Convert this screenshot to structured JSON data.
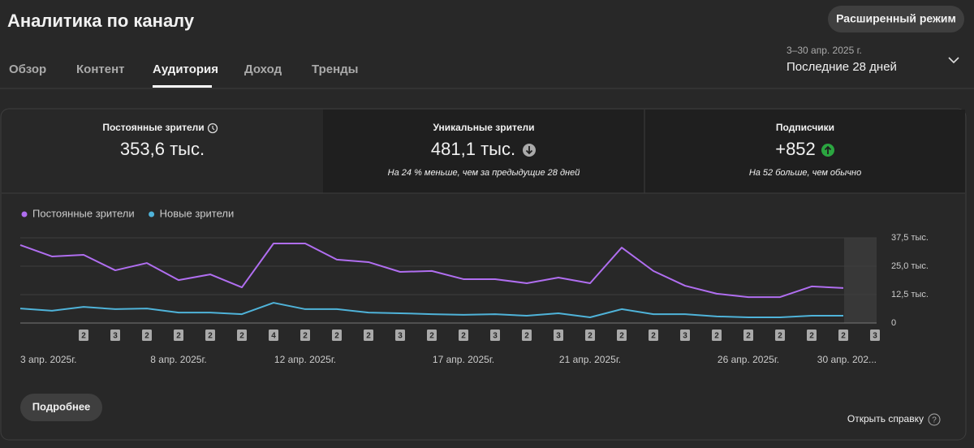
{
  "header": {
    "title": "Аналитика по каналу",
    "button": "Расширенный режим"
  },
  "tabs": [
    "Обзор",
    "Контент",
    "Аудитория",
    "Доход",
    "Тренды"
  ],
  "date_range": {
    "period": "3–30 апр. 2025 г.",
    "label": "Последние 28 дней"
  },
  "cards": [
    {
      "label": "Постоянные зрители",
      "value": "353,6 тыс."
    },
    {
      "label": "Уникальные зрители",
      "value": "481,1 тыс.",
      "note": "На 24 % меньше, чем за предыдущие 28 дней"
    },
    {
      "label": "Подписчики",
      "value": "+852",
      "note": "На 52 больше, чем обычно"
    }
  ],
  "chart_data": {
    "type": "line",
    "categories": [
      "3 апр. 2025г.",
      null,
      null,
      null,
      null,
      "8 апр. 2025г.",
      null,
      null,
      null,
      "12 апр. 2025г.",
      null,
      null,
      null,
      null,
      "17 апр. 2025г.",
      null,
      null,
      null,
      "21 апр. 2025г.",
      null,
      null,
      null,
      null,
      "26 апр. 2025г.",
      null,
      null,
      null,
      "30 апр. 202..."
    ],
    "series": [
      {
        "name": "Постоянные зрители",
        "color": "#b06ef0",
        "values": [
          34.3,
          29.3,
          30.0,
          23.2,
          26.4,
          18.9,
          21.4,
          15.7,
          35.0,
          35.0,
          27.9,
          26.8,
          22.5,
          22.9,
          19.3,
          19.3,
          17.5,
          20.0,
          17.5,
          33.2,
          22.9,
          16.4,
          12.9,
          11.4,
          11.4,
          16.1,
          15.4,
          null
        ]
      },
      {
        "name": "Новые зрители",
        "color": "#4fb3d9",
        "values": [
          6.4,
          5.4,
          7.1,
          6.1,
          6.4,
          4.6,
          4.6,
          3.9,
          8.9,
          6.1,
          6.1,
          4.6,
          4.3,
          3.9,
          3.6,
          3.9,
          3.2,
          4.3,
          2.5,
          6.1,
          3.9,
          3.9,
          2.9,
          2.5,
          2.5,
          3.2,
          3.2,
          null
        ]
      }
    ],
    "video_counts": [
      null,
      null,
      2,
      3,
      2,
      2,
      2,
      2,
      4,
      2,
      2,
      2,
      3,
      2,
      2,
      3,
      2,
      3,
      2,
      2,
      2,
      3,
      2,
      2,
      2,
      2,
      2,
      3
    ],
    "ylim": [
      0,
      37.5
    ],
    "yticks": [
      0,
      {
        "value": 12.5,
        "label": "12,5 тыс."
      },
      {
        "value": 25,
        "label": "25,0 тыс."
      },
      {
        "value": 37.5,
        "label": "37,5 тыс."
      }
    ],
    "grid": true
  },
  "footer": {
    "more_button": "Подробнее",
    "help_link": "Открыть справку"
  }
}
